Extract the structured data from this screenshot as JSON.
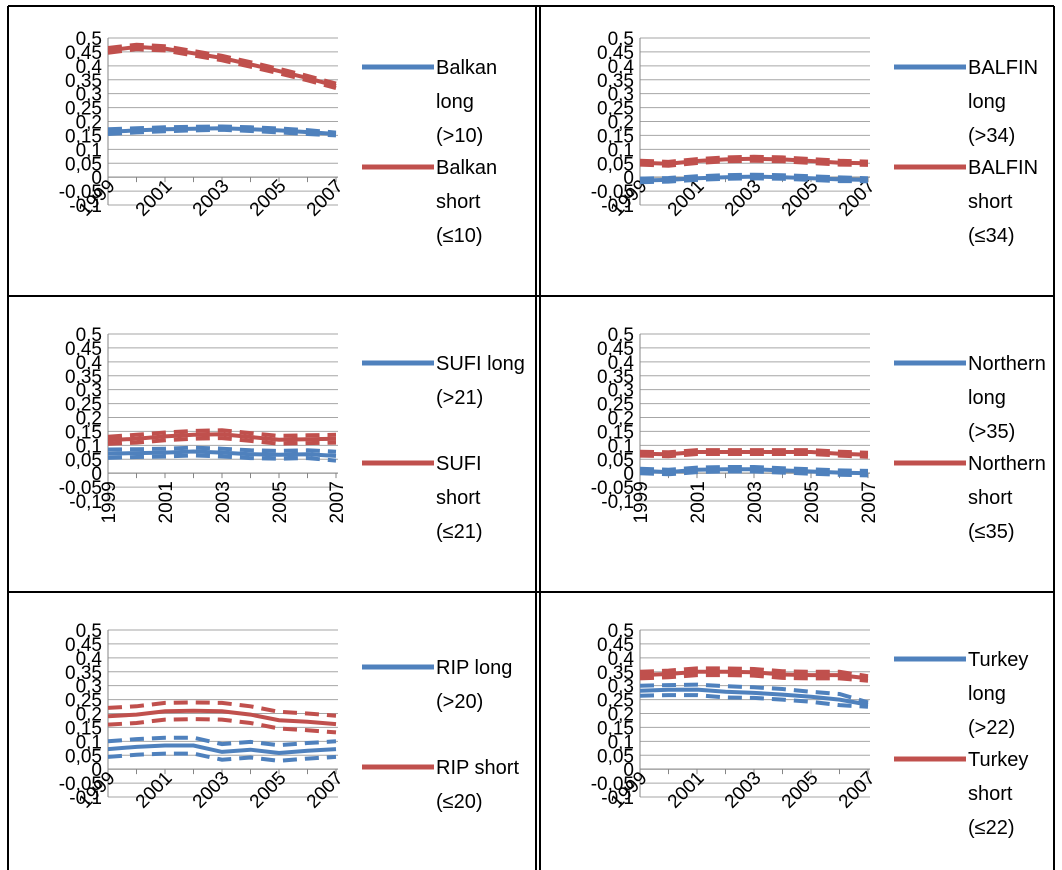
{
  "chart_data": [
    {
      "type": "line",
      "x": [
        1999,
        2000,
        2001,
        2002,
        2003,
        2004,
        2005,
        2006,
        2007
      ],
      "xticks": [
        "1999",
        "2001",
        "2003",
        "2005",
        "2007"
      ],
      "yticks": [
        "0,5",
        "0,45",
        "0,4",
        "0,35",
        "0,3",
        "0,25",
        "0,2",
        "0,15",
        "0,1",
        "0,05",
        "0",
        "-0,05",
        "-0,1"
      ],
      "ylim": [
        -0.1,
        0.5
      ],
      "grid": true,
      "xtick_rotation": "diagonal",
      "legend": "right",
      "series": [
        {
          "name": "Balkan long (>10)",
          "color": "#4F81BD",
          "values": [
            0.163,
            0.168,
            0.172,
            0.174,
            0.176,
            0.172,
            0.168,
            0.162,
            0.155
          ],
          "lower": [
            0.155,
            0.161,
            0.165,
            0.168,
            0.17,
            0.166,
            0.161,
            0.155,
            0.15
          ],
          "upper": [
            0.172,
            0.176,
            0.179,
            0.181,
            0.182,
            0.179,
            0.175,
            0.169,
            0.16
          ]
        },
        {
          "name": "Balkan short (≤10)",
          "color": "#C0504D",
          "values": [
            0.455,
            0.468,
            0.462,
            0.445,
            0.428,
            0.405,
            0.381,
            0.356,
            0.328
          ],
          "lower": [
            0.447,
            0.46,
            0.455,
            0.437,
            0.42,
            0.397,
            0.373,
            0.348,
            0.32
          ],
          "upper": [
            0.464,
            0.476,
            0.47,
            0.453,
            0.436,
            0.413,
            0.389,
            0.364,
            0.336
          ]
        }
      ]
    },
    {
      "type": "line",
      "x": [
        1999,
        2000,
        2001,
        2002,
        2003,
        2004,
        2005,
        2006,
        2007
      ],
      "xticks": [
        "1999",
        "2001",
        "2003",
        "2005",
        "2007"
      ],
      "yticks": [
        "0,5",
        "0,45",
        "0,4",
        "0,35",
        "0,3",
        "0,25",
        "0,2",
        "0,15",
        "0,1",
        "0,05",
        "0",
        "-0,05",
        "-0,1"
      ],
      "ylim": [
        -0.1,
        0.5
      ],
      "grid": true,
      "xtick_rotation": "diagonal",
      "legend": "right",
      "series": [
        {
          "name": "BALFIN long (>34)",
          "color": "#4F81BD",
          "values": [
            -0.012,
            -0.01,
            -0.004,
            0.0,
            0.002,
            0.0,
            -0.004,
            -0.008,
            -0.01
          ],
          "lower": [
            -0.018,
            -0.016,
            -0.01,
            -0.006,
            -0.004,
            -0.006,
            -0.01,
            -0.014,
            -0.015
          ],
          "upper": [
            -0.005,
            -0.003,
            0.003,
            0.007,
            0.009,
            0.007,
            0.003,
            -0.001,
            -0.004
          ]
        },
        {
          "name": "BALFIN short (≤34)",
          "color": "#C0504D",
          "values": [
            0.052,
            0.048,
            0.058,
            0.064,
            0.066,
            0.064,
            0.058,
            0.052,
            0.05
          ],
          "lower": [
            0.045,
            0.041,
            0.051,
            0.057,
            0.059,
            0.057,
            0.051,
            0.045,
            0.044
          ],
          "upper": [
            0.059,
            0.055,
            0.065,
            0.071,
            0.073,
            0.071,
            0.065,
            0.059,
            0.056
          ]
        }
      ]
    },
    {
      "type": "line",
      "x": [
        1999,
        2000,
        2001,
        2002,
        2003,
        2004,
        2005,
        2006,
        2007
      ],
      "xticks": [
        "1999",
        "2001",
        "2003",
        "2005",
        "2007"
      ],
      "yticks": [
        "0,5",
        "0,45",
        "0,4",
        "0,35",
        "0,3",
        "0,25",
        "0,2",
        "0,15",
        "0,1",
        "0,05",
        "0",
        "-0,05",
        "-0,1"
      ],
      "ylim": [
        -0.1,
        0.5
      ],
      "grid": true,
      "xtick_rotation": "vertical",
      "legend": "right",
      "series": [
        {
          "name": "SUFI long (>21)",
          "color": "#4F81BD",
          "values": [
            0.07,
            0.072,
            0.074,
            0.078,
            0.074,
            0.068,
            0.066,
            0.068,
            0.062
          ],
          "lower": [
            0.055,
            0.058,
            0.06,
            0.064,
            0.06,
            0.054,
            0.052,
            0.054,
            0.045
          ],
          "upper": [
            0.085,
            0.086,
            0.088,
            0.092,
            0.088,
            0.082,
            0.08,
            0.082,
            0.077
          ]
        },
        {
          "name": "SUFI short (≤21)",
          "color": "#C0504D",
          "values": [
            0.118,
            0.124,
            0.132,
            0.138,
            0.14,
            0.13,
            0.12,
            0.122,
            0.124
          ],
          "lower": [
            0.105,
            0.11,
            0.118,
            0.124,
            0.126,
            0.116,
            0.106,
            0.108,
            0.11
          ],
          "upper": [
            0.131,
            0.138,
            0.146,
            0.152,
            0.154,
            0.144,
            0.134,
            0.136,
            0.138
          ]
        }
      ]
    },
    {
      "type": "line",
      "x": [
        1999,
        2000,
        2001,
        2002,
        2003,
        2004,
        2005,
        2006,
        2007
      ],
      "xticks": [
        "1999",
        "2001",
        "2003",
        "2005",
        "2007"
      ],
      "yticks": [
        "0,5",
        "0,45",
        "0,4",
        "0,35",
        "0,3",
        "0,25",
        "0,2",
        "0,15",
        "0,1",
        "0,05",
        "0",
        "-0,05",
        "-0,1"
      ],
      "ylim": [
        -0.1,
        0.5
      ],
      "grid": true,
      "xtick_rotation": "vertical",
      "legend": "right",
      "series": [
        {
          "name": "Northern long (>35)",
          "color": "#4F81BD",
          "values": [
            0.008,
            0.004,
            0.012,
            0.014,
            0.014,
            0.01,
            0.006,
            0.002,
            0.0
          ],
          "lower": [
            0.0,
            -0.004,
            0.004,
            0.006,
            0.006,
            0.002,
            -0.002,
            -0.006,
            -0.008
          ],
          "upper": [
            0.016,
            0.012,
            0.02,
            0.022,
            0.022,
            0.018,
            0.014,
            0.01,
            0.008
          ]
        },
        {
          "name": "Northern short (≤35)",
          "color": "#C0504D",
          "values": [
            0.07,
            0.068,
            0.076,
            0.076,
            0.076,
            0.076,
            0.076,
            0.07,
            0.066
          ],
          "lower": [
            0.063,
            0.061,
            0.069,
            0.069,
            0.069,
            0.069,
            0.069,
            0.063,
            0.059
          ],
          "upper": [
            0.077,
            0.075,
            0.083,
            0.083,
            0.083,
            0.083,
            0.083,
            0.077,
            0.073
          ]
        }
      ]
    },
    {
      "type": "line",
      "x": [
        1999,
        2000,
        2001,
        2002,
        2003,
        2004,
        2005,
        2006,
        2007
      ],
      "xticks": [
        "1999",
        "2001",
        "2003",
        "2005",
        "2007"
      ],
      "yticks": [
        "0,5",
        "0,45",
        "0,4",
        "0,35",
        "0,3",
        "0,25",
        "0,2",
        "0,15",
        "0,1",
        "0,05",
        "0",
        "-0,05",
        "-0,1"
      ],
      "ylim": [
        -0.1,
        0.5
      ],
      "grid": true,
      "xtick_rotation": "diagonal",
      "legend": "right",
      "series": [
        {
          "name": "RIP long (>20)",
          "color": "#4F81BD",
          "values": [
            0.072,
            0.08,
            0.085,
            0.085,
            0.062,
            0.07,
            0.058,
            0.066,
            0.072
          ],
          "lower": [
            0.044,
            0.052,
            0.056,
            0.056,
            0.034,
            0.042,
            0.03,
            0.038,
            0.044
          ],
          "upper": [
            0.1,
            0.108,
            0.113,
            0.113,
            0.09,
            0.098,
            0.086,
            0.094,
            0.1
          ]
        },
        {
          "name": "RIP short (≤20)",
          "color": "#C0504D",
          "values": [
            0.19,
            0.196,
            0.208,
            0.21,
            0.208,
            0.196,
            0.176,
            0.17,
            0.162
          ],
          "lower": [
            0.16,
            0.166,
            0.178,
            0.18,
            0.178,
            0.166,
            0.146,
            0.14,
            0.132
          ],
          "upper": [
            0.22,
            0.226,
            0.238,
            0.24,
            0.238,
            0.226,
            0.206,
            0.2,
            0.192
          ]
        }
      ]
    },
    {
      "type": "line",
      "x": [
        1999,
        2000,
        2001,
        2002,
        2003,
        2004,
        2005,
        2006,
        2007
      ],
      "xticks": [
        "1999",
        "2001",
        "2003",
        "2005",
        "2007"
      ],
      "yticks": [
        "0,5",
        "0,45",
        "0,4",
        "0,35",
        "0,3",
        "0,25",
        "0,2",
        "0,15",
        "0,1",
        "0,05",
        "0",
        "-0,05",
        "-0,1"
      ],
      "ylim": [
        -0.1,
        0.5
      ],
      "grid": true,
      "xtick_rotation": "diagonal",
      "legend": "right",
      "series": [
        {
          "name": "Turkey long (>22)",
          "color": "#4F81BD",
          "values": [
            0.282,
            0.285,
            0.286,
            0.278,
            0.274,
            0.268,
            0.26,
            0.25,
            0.232
          ],
          "lower": [
            0.264,
            0.266,
            0.266,
            0.258,
            0.256,
            0.25,
            0.242,
            0.23,
            0.224
          ],
          "upper": [
            0.3,
            0.302,
            0.304,
            0.298,
            0.294,
            0.288,
            0.278,
            0.27,
            0.24
          ]
        },
        {
          "name": "Turkey short (≤22)",
          "color": "#C0504D",
          "values": [
            0.338,
            0.342,
            0.35,
            0.35,
            0.348,
            0.34,
            0.338,
            0.338,
            0.326
          ],
          "lower": [
            0.326,
            0.33,
            0.338,
            0.338,
            0.336,
            0.328,
            0.326,
            0.326,
            0.318
          ],
          "upper": [
            0.35,
            0.354,
            0.362,
            0.362,
            0.36,
            0.352,
            0.35,
            0.35,
            0.334
          ]
        }
      ]
    }
  ]
}
